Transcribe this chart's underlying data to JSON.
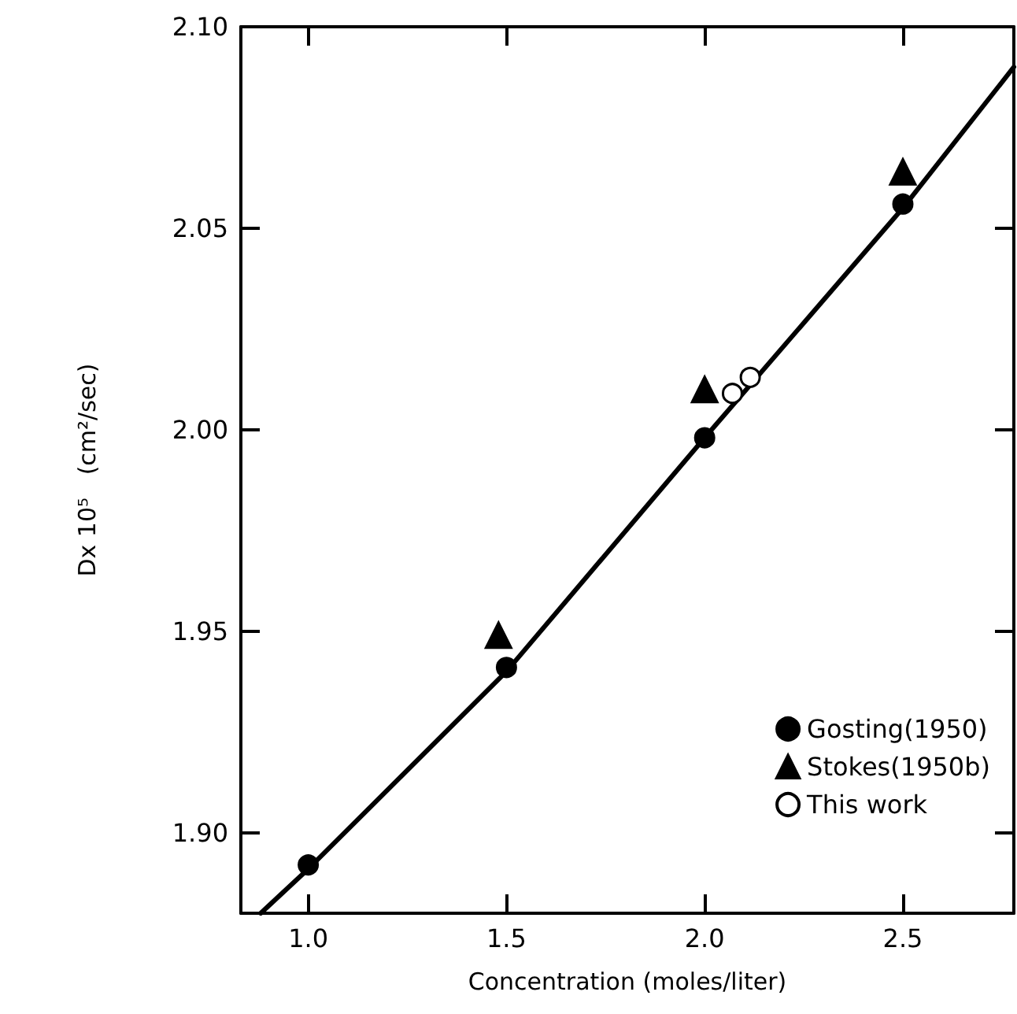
{
  "chart_data": {
    "type": "scatter",
    "xlabel": "Concentration (moles/liter)",
    "ylabel": "Dx 10⁵   (cm²/sec)",
    "xlim": [
      0.83,
      2.78
    ],
    "ylim": [
      1.88,
      2.1
    ],
    "xticks": [
      {
        "value": 1,
        "label": "1.0"
      },
      {
        "value": 1.5,
        "label": "1.5"
      },
      {
        "value": 2,
        "label": "2.0"
      },
      {
        "value": 2.5,
        "label": "2.5"
      }
    ],
    "yticks": [
      {
        "value": 1.9,
        "label": "1.90"
      },
      {
        "value": 1.95,
        "label": "1.95"
      },
      {
        "value": 2,
        "label": "2.00"
      },
      {
        "value": 2.05,
        "label": "2.05"
      },
      {
        "value": 2.1,
        "label": "2.10"
      }
    ],
    "grid": false,
    "legend": "bottom right",
    "series": [
      {
        "type": "line",
        "color": "#000000",
        "marker": "none",
        "line_style": "solid",
        "x": [
          0.88,
          1.0,
          1.5,
          2.0,
          2.5,
          2.78
        ],
        "values": [
          1.88,
          1.891,
          1.94,
          1.998,
          2.055,
          2.09
        ]
      },
      {
        "name": "Gosting(1950)",
        "color": "#000000",
        "marker": "circle",
        "x": [
          1.0,
          1.5,
          2.0,
          2.5
        ],
        "values": [
          1.892,
          1.941,
          1.998,
          2.056
        ]
      },
      {
        "name": "Stokes(1950b)",
        "color": "#000000",
        "marker": "triangle",
        "x": [
          1.48,
          2.0,
          2.5
        ],
        "values": [
          1.949,
          2.01,
          2.064
        ]
      },
      {
        "name": "This work",
        "color": "#ffffff",
        "marker": "circle",
        "x": [
          2.07,
          2.115
        ],
        "values": [
          2.009,
          2.013
        ]
      }
    ]
  }
}
